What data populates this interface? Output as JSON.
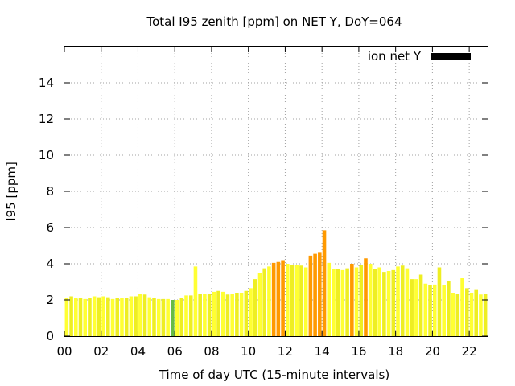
{
  "chart_data": {
    "type": "bar",
    "title": "Total I95 zenith [ppm] on NET Y, DoY=064",
    "xlabel": "Time of day UTC (15-minute intervals)",
    "ylabel": "I95 [ppm]",
    "xlim": [
      0,
      23
    ],
    "ylim": [
      0,
      16
    ],
    "xticks": [
      "00",
      "02",
      "04",
      "06",
      "08",
      "10",
      "12",
      "14",
      "16",
      "18",
      "20",
      "22"
    ],
    "yticks": [
      "0",
      "2",
      "4",
      "6",
      "8",
      "10",
      "12",
      "14"
    ],
    "grid": true,
    "legend": {
      "position": "top-right",
      "entries": [
        {
          "name": "ion net Y",
          "color": "#000000"
        }
      ]
    },
    "interval_hours": 0.25,
    "colors": {
      "low": "#ffff33",
      "low_alt": "#eeee22",
      "mid": "#ff9900",
      "quiet": "#66bb44"
    },
    "series": [
      {
        "name": "ion net Y",
        "x_start_hours": 0,
        "values": [
          2.1,
          2.2,
          2.1,
          2.1,
          2.05,
          2.1,
          2.2,
          2.15,
          2.2,
          2.15,
          2.05,
          2.1,
          2.1,
          2.1,
          2.2,
          2.2,
          2.35,
          2.3,
          2.15,
          2.1,
          2.05,
          2.05,
          2.05,
          2.0,
          2.0,
          2.1,
          2.25,
          2.25,
          3.85,
          2.35,
          2.35,
          2.35,
          2.45,
          2.5,
          2.45,
          2.3,
          2.35,
          2.4,
          2.4,
          2.5,
          2.65,
          3.15,
          3.5,
          3.75,
          3.85,
          4.05,
          4.1,
          4.2,
          4.0,
          3.95,
          3.95,
          3.9,
          3.8,
          4.45,
          4.55,
          4.65,
          5.85,
          4.05,
          3.7,
          3.7,
          3.65,
          3.75,
          4.0,
          3.8,
          3.95,
          4.3,
          4.0,
          3.7,
          3.8,
          3.55,
          3.6,
          3.65,
          3.85,
          3.9,
          3.75,
          3.15,
          3.15,
          3.4,
          2.9,
          2.8,
          2.85,
          3.8,
          2.8,
          3.05,
          2.4,
          2.35,
          3.2,
          2.65,
          2.4,
          2.55,
          2.3,
          2.35
        ],
        "categories": [
          "low",
          "low_alt",
          "low",
          "low_alt",
          "low",
          "low_alt",
          "low",
          "low_alt",
          "low",
          "low_alt",
          "low",
          "low_alt",
          "low",
          "low_alt",
          "low",
          "low_alt",
          "low",
          "low_alt",
          "low",
          "low_alt",
          "low",
          "low_alt",
          "low",
          "quiet",
          "low",
          "low_alt",
          "low",
          "low_alt",
          "low",
          "low_alt",
          "low",
          "low_alt",
          "low",
          "low_alt",
          "low",
          "low_alt",
          "low",
          "low_alt",
          "low",
          "low_alt",
          "low",
          "low_alt",
          "low",
          "low_alt",
          "low",
          "mid",
          "mid",
          "mid",
          "low",
          "low_alt",
          "low",
          "low_alt",
          "low",
          "mid",
          "mid",
          "mid",
          "mid",
          "low",
          "low",
          "low_alt",
          "low",
          "low_alt",
          "mid",
          "low",
          "low_alt",
          "mid",
          "low",
          "low_alt",
          "low",
          "low_alt",
          "low",
          "low_alt",
          "low",
          "low_alt",
          "low",
          "low_alt",
          "low",
          "low_alt",
          "low",
          "low_alt",
          "low",
          "low_alt",
          "low",
          "low_alt",
          "low",
          "low_alt",
          "low",
          "low_alt",
          "low",
          "low_alt",
          "low",
          "low_alt"
        ]
      }
    ]
  }
}
